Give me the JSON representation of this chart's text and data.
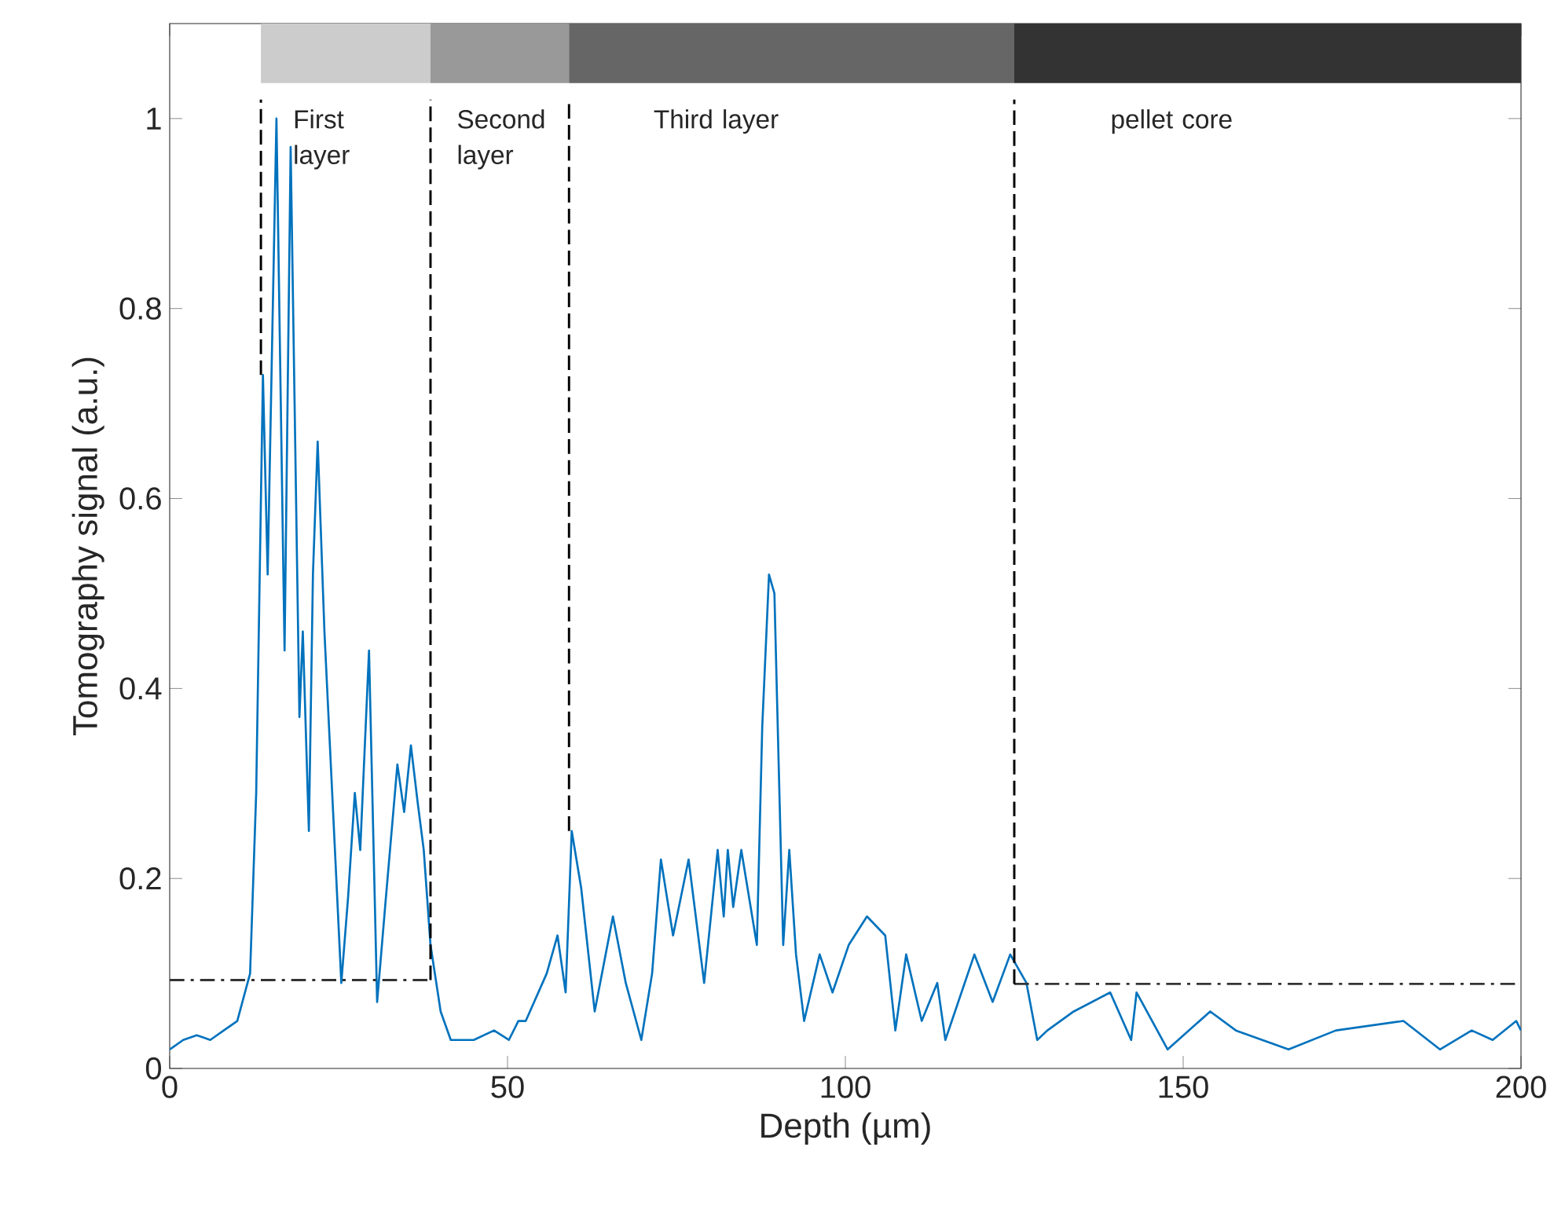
{
  "chart_data": {
    "type": "line",
    "xlabel": "Depth (µm)",
    "ylabel": "Tomography signal (a.u.)",
    "xlim": [
      0,
      200
    ],
    "ylim": [
      0,
      1.1
    ],
    "xticks": [
      0,
      50,
      100,
      150,
      200
    ],
    "yticks": [
      0,
      0.2,
      0.4,
      0.6,
      0.8,
      1
    ],
    "grid": false,
    "marker": "none",
    "bands": [
      {
        "axis": "x",
        "from": 13.5,
        "to": 38.6,
        "label": "First layer",
        "color": "#cccccc"
      },
      {
        "axis": "x",
        "from": 38.6,
        "to": 59.1,
        "label": "Second layer",
        "color": "#999999"
      },
      {
        "axis": "x",
        "from": 59.1,
        "to": 125,
        "label": "Third layer",
        "color": "#666666"
      },
      {
        "axis": "x",
        "from": 125,
        "to": 200,
        "label": "pellet core",
        "color": "#333333"
      }
    ],
    "series": [
      {
        "color": "#0072bd",
        "line_style": "solid",
        "x": [
          0,
          2,
          4,
          6,
          8,
          10,
          11.9,
          12.8,
          13.8,
          14.5,
          15.8,
          17.0,
          17.9,
          19.2,
          19.7,
          20.6,
          21.2,
          21.9,
          22.9,
          25.4,
          26.4,
          27.4,
          28.2,
          29.5,
          30.7,
          32.0,
          33.7,
          34.7,
          35.7,
          36.7,
          37.6,
          38.6,
          40.1,
          41.6,
          45,
          48,
          50.2,
          51.6,
          52.7,
          55.8,
          57.4,
          58.6,
          59.5,
          60.9,
          62.9,
          65.6,
          67.5,
          69.8,
          71.4,
          72.7,
          74.5,
          76.8,
          79.1,
          81.1,
          82.0,
          82.6,
          83.4,
          84.6,
          86.9,
          87.7,
          88.7,
          89.5,
          90.8,
          91.7,
          92.7,
          93.9,
          96.2,
          98.1,
          100.5,
          103.2,
          105.9,
          107.4,
          109.0,
          111.3,
          113.6,
          114.8,
          119.1,
          121.8,
          124.4,
          126.8,
          128.4,
          129.9,
          133.8,
          139.2,
          142.3,
          143.1,
          147.7,
          154,
          157.8,
          165.6,
          172.6,
          182.6,
          188,
          192.7,
          195.8,
          199.3,
          200
        ],
        "values": [
          0.02,
          0.03,
          0.035,
          0.03,
          0.04,
          0.05,
          0.1,
          0.29,
          0.73,
          0.52,
          1.0,
          0.44,
          0.97,
          0.37,
          0.46,
          0.25,
          0.52,
          0.66,
          0.46,
          0.09,
          0.18,
          0.29,
          0.23,
          0.44,
          0.07,
          0.18,
          0.32,
          0.27,
          0.34,
          0.28,
          0.23,
          0.13,
          0.06,
          0.03,
          0.03,
          0.04,
          0.03,
          0.05,
          0.05,
          0.1,
          0.14,
          0.08,
          0.25,
          0.19,
          0.06,
          0.16,
          0.09,
          0.03,
          0.1,
          0.22,
          0.14,
          0.22,
          0.09,
          0.23,
          0.16,
          0.23,
          0.17,
          0.23,
          0.13,
          0.36,
          0.52,
          0.5,
          0.13,
          0.23,
          0.12,
          0.05,
          0.12,
          0.08,
          0.13,
          0.16,
          0.14,
          0.04,
          0.12,
          0.05,
          0.09,
          0.03,
          0.12,
          0.07,
          0.12,
          0.09,
          0.03,
          0.04,
          0.06,
          0.08,
          0.03,
          0.08,
          0.02,
          0.06,
          0.04,
          0.02,
          0.04,
          0.05,
          0.02,
          0.04,
          0.03,
          0.05,
          0.04
        ]
      },
      {
        "color": "#333333",
        "line_style": "dashdot",
        "x": [
          0,
          38.6
        ],
        "values": [
          0.093,
          0.093
        ]
      },
      {
        "color": "#333333",
        "line_style": "dashdot",
        "x": [
          125,
          200
        ],
        "values": [
          0.089,
          0.089
        ]
      },
      {
        "color": "#000000",
        "line_style": "dashed",
        "x": [
          13.5,
          13.5
        ],
        "values": [
          0.73,
          1.02
        ]
      },
      {
        "color": "#000000",
        "line_style": "dashed",
        "x": [
          38.6,
          38.6
        ],
        "values": [
          0.093,
          1.02
        ]
      },
      {
        "color": "#000000",
        "line_style": "dashed",
        "x": [
          59.1,
          59.1
        ],
        "values": [
          0.25,
          1.02
        ]
      },
      {
        "color": "#000000",
        "line_style": "dashed",
        "x": [
          125,
          125
        ],
        "values": [
          0.089,
          1.02
        ]
      }
    ]
  }
}
